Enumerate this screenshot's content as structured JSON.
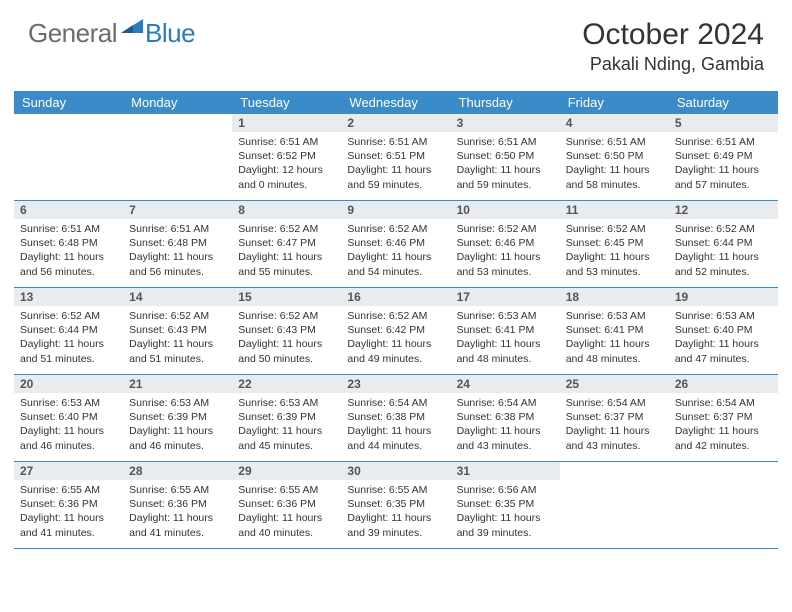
{
  "logo": {
    "text_general": "General",
    "text_blue": "Blue",
    "icon_color": "#2b7bbf"
  },
  "title": "October 2024",
  "location": "Pakali Nding, Gambia",
  "colors": {
    "header_bg": "#3b8bc9",
    "header_text": "#ffffff",
    "daynum_bg": "#e8ecef",
    "daynum_text": "#555555",
    "body_text": "#333333",
    "border": "#3b8bc9",
    "logo_gray": "#6b6b6b",
    "logo_blue": "#2b7bbf",
    "page_bg": "#ffffff"
  },
  "typography": {
    "title_fontsize": 30,
    "location_fontsize": 18,
    "weekday_fontsize": 13,
    "daynum_fontsize": 12,
    "body_fontsize": 10.5
  },
  "weekdays": [
    "Sunday",
    "Monday",
    "Tuesday",
    "Wednesday",
    "Thursday",
    "Friday",
    "Saturday"
  ],
  "weeks": [
    [
      null,
      null,
      {
        "day": "1",
        "sunrise": "Sunrise: 6:51 AM",
        "sunset": "Sunset: 6:52 PM",
        "daylight": "Daylight: 12 hours and 0 minutes."
      },
      {
        "day": "2",
        "sunrise": "Sunrise: 6:51 AM",
        "sunset": "Sunset: 6:51 PM",
        "daylight": "Daylight: 11 hours and 59 minutes."
      },
      {
        "day": "3",
        "sunrise": "Sunrise: 6:51 AM",
        "sunset": "Sunset: 6:50 PM",
        "daylight": "Daylight: 11 hours and 59 minutes."
      },
      {
        "day": "4",
        "sunrise": "Sunrise: 6:51 AM",
        "sunset": "Sunset: 6:50 PM",
        "daylight": "Daylight: 11 hours and 58 minutes."
      },
      {
        "day": "5",
        "sunrise": "Sunrise: 6:51 AM",
        "sunset": "Sunset: 6:49 PM",
        "daylight": "Daylight: 11 hours and 57 minutes."
      }
    ],
    [
      {
        "day": "6",
        "sunrise": "Sunrise: 6:51 AM",
        "sunset": "Sunset: 6:48 PM",
        "daylight": "Daylight: 11 hours and 56 minutes."
      },
      {
        "day": "7",
        "sunrise": "Sunrise: 6:51 AM",
        "sunset": "Sunset: 6:48 PM",
        "daylight": "Daylight: 11 hours and 56 minutes."
      },
      {
        "day": "8",
        "sunrise": "Sunrise: 6:52 AM",
        "sunset": "Sunset: 6:47 PM",
        "daylight": "Daylight: 11 hours and 55 minutes."
      },
      {
        "day": "9",
        "sunrise": "Sunrise: 6:52 AM",
        "sunset": "Sunset: 6:46 PM",
        "daylight": "Daylight: 11 hours and 54 minutes."
      },
      {
        "day": "10",
        "sunrise": "Sunrise: 6:52 AM",
        "sunset": "Sunset: 6:46 PM",
        "daylight": "Daylight: 11 hours and 53 minutes."
      },
      {
        "day": "11",
        "sunrise": "Sunrise: 6:52 AM",
        "sunset": "Sunset: 6:45 PM",
        "daylight": "Daylight: 11 hours and 53 minutes."
      },
      {
        "day": "12",
        "sunrise": "Sunrise: 6:52 AM",
        "sunset": "Sunset: 6:44 PM",
        "daylight": "Daylight: 11 hours and 52 minutes."
      }
    ],
    [
      {
        "day": "13",
        "sunrise": "Sunrise: 6:52 AM",
        "sunset": "Sunset: 6:44 PM",
        "daylight": "Daylight: 11 hours and 51 minutes."
      },
      {
        "day": "14",
        "sunrise": "Sunrise: 6:52 AM",
        "sunset": "Sunset: 6:43 PM",
        "daylight": "Daylight: 11 hours and 51 minutes."
      },
      {
        "day": "15",
        "sunrise": "Sunrise: 6:52 AM",
        "sunset": "Sunset: 6:43 PM",
        "daylight": "Daylight: 11 hours and 50 minutes."
      },
      {
        "day": "16",
        "sunrise": "Sunrise: 6:52 AM",
        "sunset": "Sunset: 6:42 PM",
        "daylight": "Daylight: 11 hours and 49 minutes."
      },
      {
        "day": "17",
        "sunrise": "Sunrise: 6:53 AM",
        "sunset": "Sunset: 6:41 PM",
        "daylight": "Daylight: 11 hours and 48 minutes."
      },
      {
        "day": "18",
        "sunrise": "Sunrise: 6:53 AM",
        "sunset": "Sunset: 6:41 PM",
        "daylight": "Daylight: 11 hours and 48 minutes."
      },
      {
        "day": "19",
        "sunrise": "Sunrise: 6:53 AM",
        "sunset": "Sunset: 6:40 PM",
        "daylight": "Daylight: 11 hours and 47 minutes."
      }
    ],
    [
      {
        "day": "20",
        "sunrise": "Sunrise: 6:53 AM",
        "sunset": "Sunset: 6:40 PM",
        "daylight": "Daylight: 11 hours and 46 minutes."
      },
      {
        "day": "21",
        "sunrise": "Sunrise: 6:53 AM",
        "sunset": "Sunset: 6:39 PM",
        "daylight": "Daylight: 11 hours and 46 minutes."
      },
      {
        "day": "22",
        "sunrise": "Sunrise: 6:53 AM",
        "sunset": "Sunset: 6:39 PM",
        "daylight": "Daylight: 11 hours and 45 minutes."
      },
      {
        "day": "23",
        "sunrise": "Sunrise: 6:54 AM",
        "sunset": "Sunset: 6:38 PM",
        "daylight": "Daylight: 11 hours and 44 minutes."
      },
      {
        "day": "24",
        "sunrise": "Sunrise: 6:54 AM",
        "sunset": "Sunset: 6:38 PM",
        "daylight": "Daylight: 11 hours and 43 minutes."
      },
      {
        "day": "25",
        "sunrise": "Sunrise: 6:54 AM",
        "sunset": "Sunset: 6:37 PM",
        "daylight": "Daylight: 11 hours and 43 minutes."
      },
      {
        "day": "26",
        "sunrise": "Sunrise: 6:54 AM",
        "sunset": "Sunset: 6:37 PM",
        "daylight": "Daylight: 11 hours and 42 minutes."
      }
    ],
    [
      {
        "day": "27",
        "sunrise": "Sunrise: 6:55 AM",
        "sunset": "Sunset: 6:36 PM",
        "daylight": "Daylight: 11 hours and 41 minutes."
      },
      {
        "day": "28",
        "sunrise": "Sunrise: 6:55 AM",
        "sunset": "Sunset: 6:36 PM",
        "daylight": "Daylight: 11 hours and 41 minutes."
      },
      {
        "day": "29",
        "sunrise": "Sunrise: 6:55 AM",
        "sunset": "Sunset: 6:36 PM",
        "daylight": "Daylight: 11 hours and 40 minutes."
      },
      {
        "day": "30",
        "sunrise": "Sunrise: 6:55 AM",
        "sunset": "Sunset: 6:35 PM",
        "daylight": "Daylight: 11 hours and 39 minutes."
      },
      {
        "day": "31",
        "sunrise": "Sunrise: 6:56 AM",
        "sunset": "Sunset: 6:35 PM",
        "daylight": "Daylight: 11 hours and 39 minutes."
      },
      null,
      null
    ]
  ]
}
